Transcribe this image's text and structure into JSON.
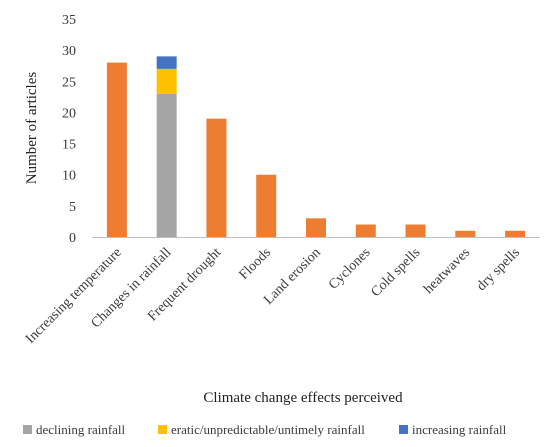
{
  "chart_data": {
    "type": "bar",
    "stacked": true,
    "xlabel": "Climate change effects perceived",
    "ylabel": "Number of articles",
    "ylim": [
      0,
      35
    ],
    "yticks": [
      0,
      5,
      10,
      15,
      20,
      25,
      30,
      35
    ],
    "grid": false,
    "legend_position": "bottom",
    "categories": [
      "Increasing temperature",
      "Changes in rainfall",
      "Frequent drought",
      "Floods",
      "Land erosion",
      "Cyclones",
      "Cold spells",
      "heatwaves",
      "dry spells"
    ],
    "default_color": "#ED7D31",
    "series": [
      {
        "name": "declining rainfall",
        "color": "#A5A5A5",
        "values": [
          0,
          23,
          0,
          0,
          0,
          0,
          0,
          0,
          0
        ]
      },
      {
        "name": "eratic/unpredictable/untimely rainfall",
        "color": "#FFC000",
        "values": [
          0,
          4,
          0,
          0,
          0,
          0,
          0,
          0,
          0
        ]
      },
      {
        "name": "increasing rainfall",
        "color": "#4472C4",
        "values": [
          0,
          2,
          0,
          0,
          0,
          0,
          0,
          0,
          0
        ]
      }
    ],
    "totals_other": {
      "color": "#ED7D31",
      "values": [
        28,
        0,
        19,
        10,
        3,
        2,
        2,
        1,
        1
      ]
    }
  }
}
